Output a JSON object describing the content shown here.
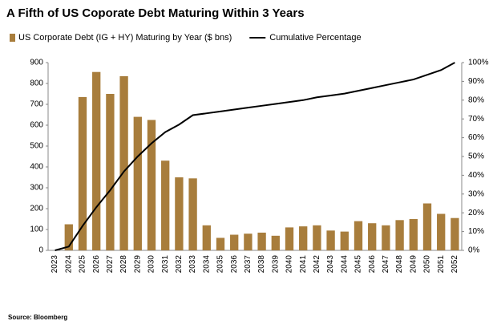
{
  "chart_data": {
    "type": "bar_line",
    "title": "A Fifth of US Coporate Debt Maturing Within 3 Years",
    "source": "Source: Bloomberg",
    "categories": [
      "2023",
      "2024",
      "2025",
      "2026",
      "2027",
      "2028",
      "2029",
      "2030",
      "2031",
      "2032",
      "2033",
      "2034",
      "2035",
      "2036",
      "2037",
      "2038",
      "2039",
      "2040",
      "2041",
      "2042",
      "2043",
      "2044",
      "2045",
      "2046",
      "2047",
      "2048",
      "2049",
      "2050",
      "2051",
      "2052"
    ],
    "series": [
      {
        "name": "US Corporate Debt (IG + HY) Maturing by Year ($ bns)",
        "type": "bar",
        "color": "#a87d3c",
        "values": [
          0,
          125,
          735,
          855,
          750,
          835,
          640,
          625,
          430,
          350,
          345,
          120,
          60,
          75,
          80,
          85,
          70,
          110,
          115,
          120,
          95,
          90,
          140,
          130,
          120,
          145,
          150,
          225,
          175,
          155
        ]
      },
      {
        "name": "Cumulative Percentage",
        "type": "line",
        "axis": "y2",
        "color": "#000000",
        "values": [
          0,
          2,
          13,
          23,
          32,
          42,
          50,
          57,
          63,
          67,
          72,
          73,
          74,
          75,
          76,
          77,
          78,
          79,
          80,
          81.5,
          82.5,
          83.5,
          85,
          86.5,
          88,
          89.5,
          91,
          93.5,
          96,
          100
        ]
      }
    ],
    "ylim": [
      0,
      900
    ],
    "yticks": [
      0,
      100,
      200,
      300,
      400,
      500,
      600,
      700,
      800,
      900
    ],
    "y2lim": [
      0,
      100
    ],
    "y2ticks": [
      {
        "value": 0,
        "label": "0%"
      },
      {
        "value": 10,
        "label": "10%"
      },
      {
        "value": 20,
        "label": "20%"
      },
      {
        "value": 30,
        "label": "30%"
      },
      {
        "value": 40,
        "label": "40%"
      },
      {
        "value": 50,
        "label": "50%"
      },
      {
        "value": 60,
        "label": "60%"
      },
      {
        "value": 70,
        "label": "70%"
      },
      {
        "value": 80,
        "label": "80%"
      },
      {
        "value": 90,
        "label": "90%"
      },
      {
        "value": 100,
        "label": "100%"
      }
    ],
    "grid": false
  }
}
